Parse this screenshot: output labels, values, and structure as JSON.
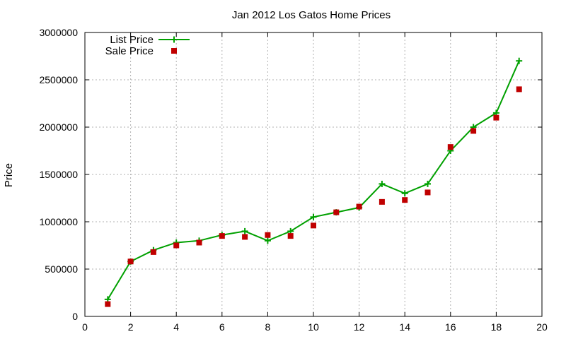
{
  "chart_data": {
    "type": "line",
    "title": "Jan 2012 Los Gatos Home Prices",
    "xlabel": "",
    "ylabel": "Price",
    "xlim": [
      0,
      20
    ],
    "ylim": [
      0,
      3000000
    ],
    "xticks": [
      0,
      2,
      4,
      6,
      8,
      10,
      12,
      14,
      16,
      18,
      20
    ],
    "yticks": [
      0,
      500000,
      1000000,
      1500000,
      2000000,
      2500000,
      3000000
    ],
    "xtick_labels": [
      "0",
      "2",
      "4",
      "6",
      "8",
      "10",
      "12",
      "14",
      "16",
      "18",
      "20"
    ],
    "ytick_labels": [
      "0",
      "500000",
      "1000000",
      "1500000",
      "2000000",
      "2500000",
      "3000000"
    ],
    "grid": true,
    "legend_position": "top-left",
    "series": [
      {
        "name": "List Price",
        "style": "line+cross",
        "color": "#00a000",
        "points": [
          [
            1,
            180000
          ],
          [
            2,
            580000
          ],
          [
            3,
            700000
          ],
          [
            4,
            780000
          ],
          [
            5,
            800000
          ],
          [
            6,
            860000
          ],
          [
            7,
            900000
          ],
          [
            8,
            800000
          ],
          [
            9,
            900000
          ],
          [
            10,
            1050000
          ],
          [
            11,
            1100000
          ],
          [
            12,
            1150000
          ],
          [
            13,
            1400000
          ],
          [
            14,
            1300000
          ],
          [
            15,
            1400000
          ],
          [
            16,
            1750000
          ],
          [
            17,
            2000000
          ],
          [
            18,
            2150000
          ],
          [
            19,
            2700000
          ]
        ]
      },
      {
        "name": "Sale Price",
        "style": "square",
        "color": "#c00000",
        "points": [
          [
            1,
            130000
          ],
          [
            2,
            580000
          ],
          [
            3,
            680000
          ],
          [
            4,
            750000
          ],
          [
            5,
            780000
          ],
          [
            6,
            850000
          ],
          [
            7,
            840000
          ],
          [
            8,
            860000
          ],
          [
            9,
            850000
          ],
          [
            10,
            960000
          ],
          [
            11,
            1100000
          ],
          [
            12,
            1160000
          ],
          [
            13,
            1210000
          ],
          [
            14,
            1230000
          ],
          [
            15,
            1310000
          ],
          [
            16,
            1790000
          ],
          [
            17,
            1960000
          ],
          [
            18,
            2100000
          ],
          [
            19,
            2400000
          ]
        ]
      }
    ]
  }
}
